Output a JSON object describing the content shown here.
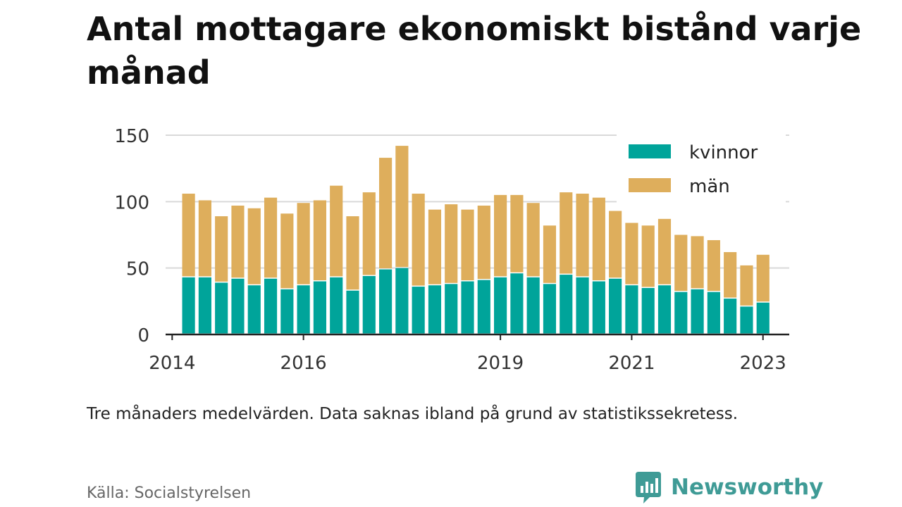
{
  "title": "Antal mottagare ekonomiskt bistånd varje månad",
  "footnote": "Tre månaders medelvärden. Data saknas ibland på grund av statistikssekretess.",
  "source": "Källa: Socialstyrelsen",
  "brand": {
    "name": "Newsworthy",
    "icon": "newsworthy-chart-bubble-icon"
  },
  "colors": {
    "kvinnor": "#00a49a",
    "man": "#deae5c",
    "grid": "#d9d9d9",
    "axis": "#222222"
  },
  "chart_data": {
    "type": "bar",
    "stacked": true,
    "legend_position": "top-right",
    "grid": "horizontal",
    "ylim": [
      0,
      150
    ],
    "yticks": [
      0,
      50,
      100,
      150
    ],
    "xlim": [
      2013.9,
      2023.4
    ],
    "xticks": [
      {
        "value": 2014.0,
        "label": "2014"
      },
      {
        "value": 2016.0,
        "label": "2016"
      },
      {
        "value": 2019.0,
        "label": "2019"
      },
      {
        "value": 2021.0,
        "label": "2021"
      },
      {
        "value": 2023.0,
        "label": "2023"
      }
    ],
    "x": [
      2014.25,
      2014.5,
      2014.75,
      2015.0,
      2015.25,
      2015.5,
      2015.75,
      2016.0,
      2016.25,
      2016.5,
      2016.75,
      2017.0,
      2017.25,
      2017.5,
      2017.75,
      2018.0,
      2018.25,
      2018.5,
      2018.75,
      2019.0,
      2019.25,
      2019.5,
      2019.75,
      2020.0,
      2020.25,
      2020.5,
      2020.75,
      2021.0,
      2021.25,
      2021.5,
      2021.75,
      2022.0,
      2022.25,
      2022.5,
      2022.75,
      2023.0,
      2023.25
    ],
    "series": [
      {
        "name": "kvinnor",
        "color": "#00a49a",
        "values": [
          43,
          43,
          39,
          42,
          37,
          42,
          34,
          37,
          40,
          43,
          33,
          44,
          49,
          50,
          36,
          37,
          38,
          40,
          41,
          43,
          46,
          43,
          38,
          45,
          43,
          40,
          42,
          37,
          35,
          37,
          32,
          34,
          32,
          27,
          21,
          24,
          null
        ]
      },
      {
        "name": "män",
        "color": "#deae5c",
        "values": [
          63,
          58,
          50,
          55,
          58,
          61,
          57,
          62,
          61,
          69,
          56,
          63,
          84,
          92,
          70,
          57,
          60,
          54,
          56,
          62,
          59,
          56,
          44,
          62,
          63,
          63,
          51,
          47,
          47,
          50,
          43,
          40,
          39,
          35,
          31,
          36,
          null
        ]
      }
    ]
  }
}
